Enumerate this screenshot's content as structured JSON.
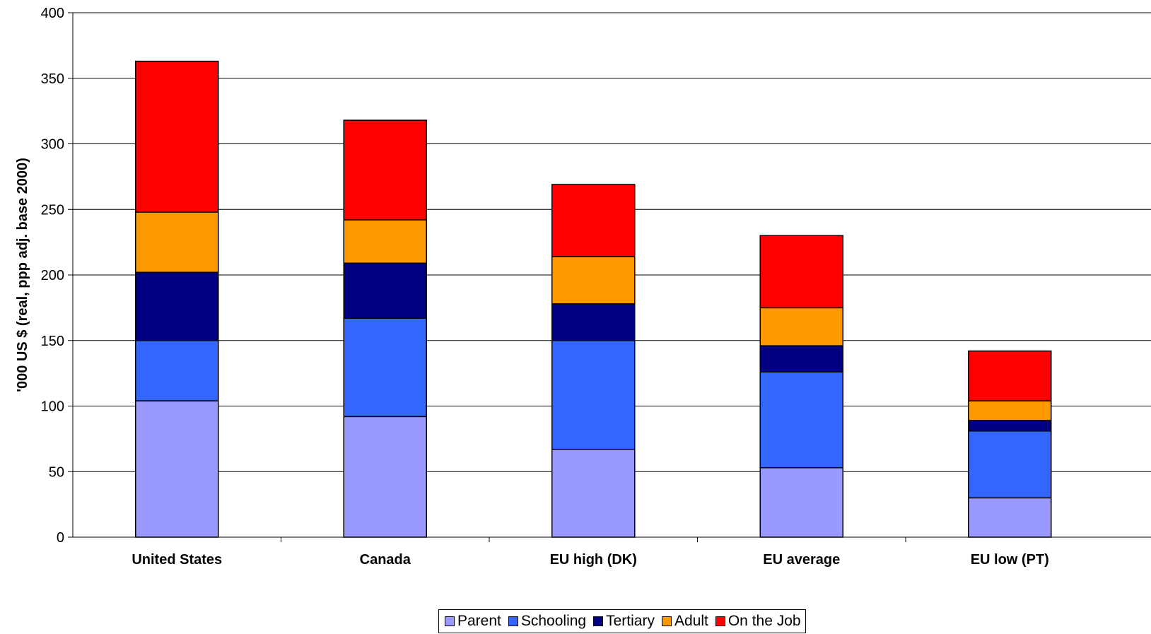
{
  "chart_data": {
    "type": "bar",
    "stacked": true,
    "title": "",
    "xlabel": "",
    "ylabel": "'000 US $ (real, ppp adj. base 2000)",
    "ylim": [
      0,
      400
    ],
    "yticks": [
      0,
      50,
      100,
      150,
      200,
      250,
      300,
      350,
      400
    ],
    "grid": true,
    "legend_position": "bottom",
    "categories": [
      "United States",
      "Canada",
      "EU high (DK)",
      "EU average",
      "EU low (PT)"
    ],
    "series": [
      {
        "name": "Parent",
        "color": "#9999ff",
        "values": [
          104,
          92,
          67,
          53,
          30
        ]
      },
      {
        "name": "Schooling",
        "color": "#3366ff",
        "values": [
          46,
          75,
          83,
          73,
          51
        ]
      },
      {
        "name": "Tertiary",
        "color": "#000080",
        "values": [
          52,
          42,
          28,
          20,
          8
        ]
      },
      {
        "name": "Adult",
        "color": "#ff9900",
        "values": [
          46,
          33,
          36,
          29,
          15
        ]
      },
      {
        "name": "On the Job",
        "color": "#ff0000",
        "values": [
          115,
          76,
          55,
          55,
          38
        ]
      }
    ]
  }
}
